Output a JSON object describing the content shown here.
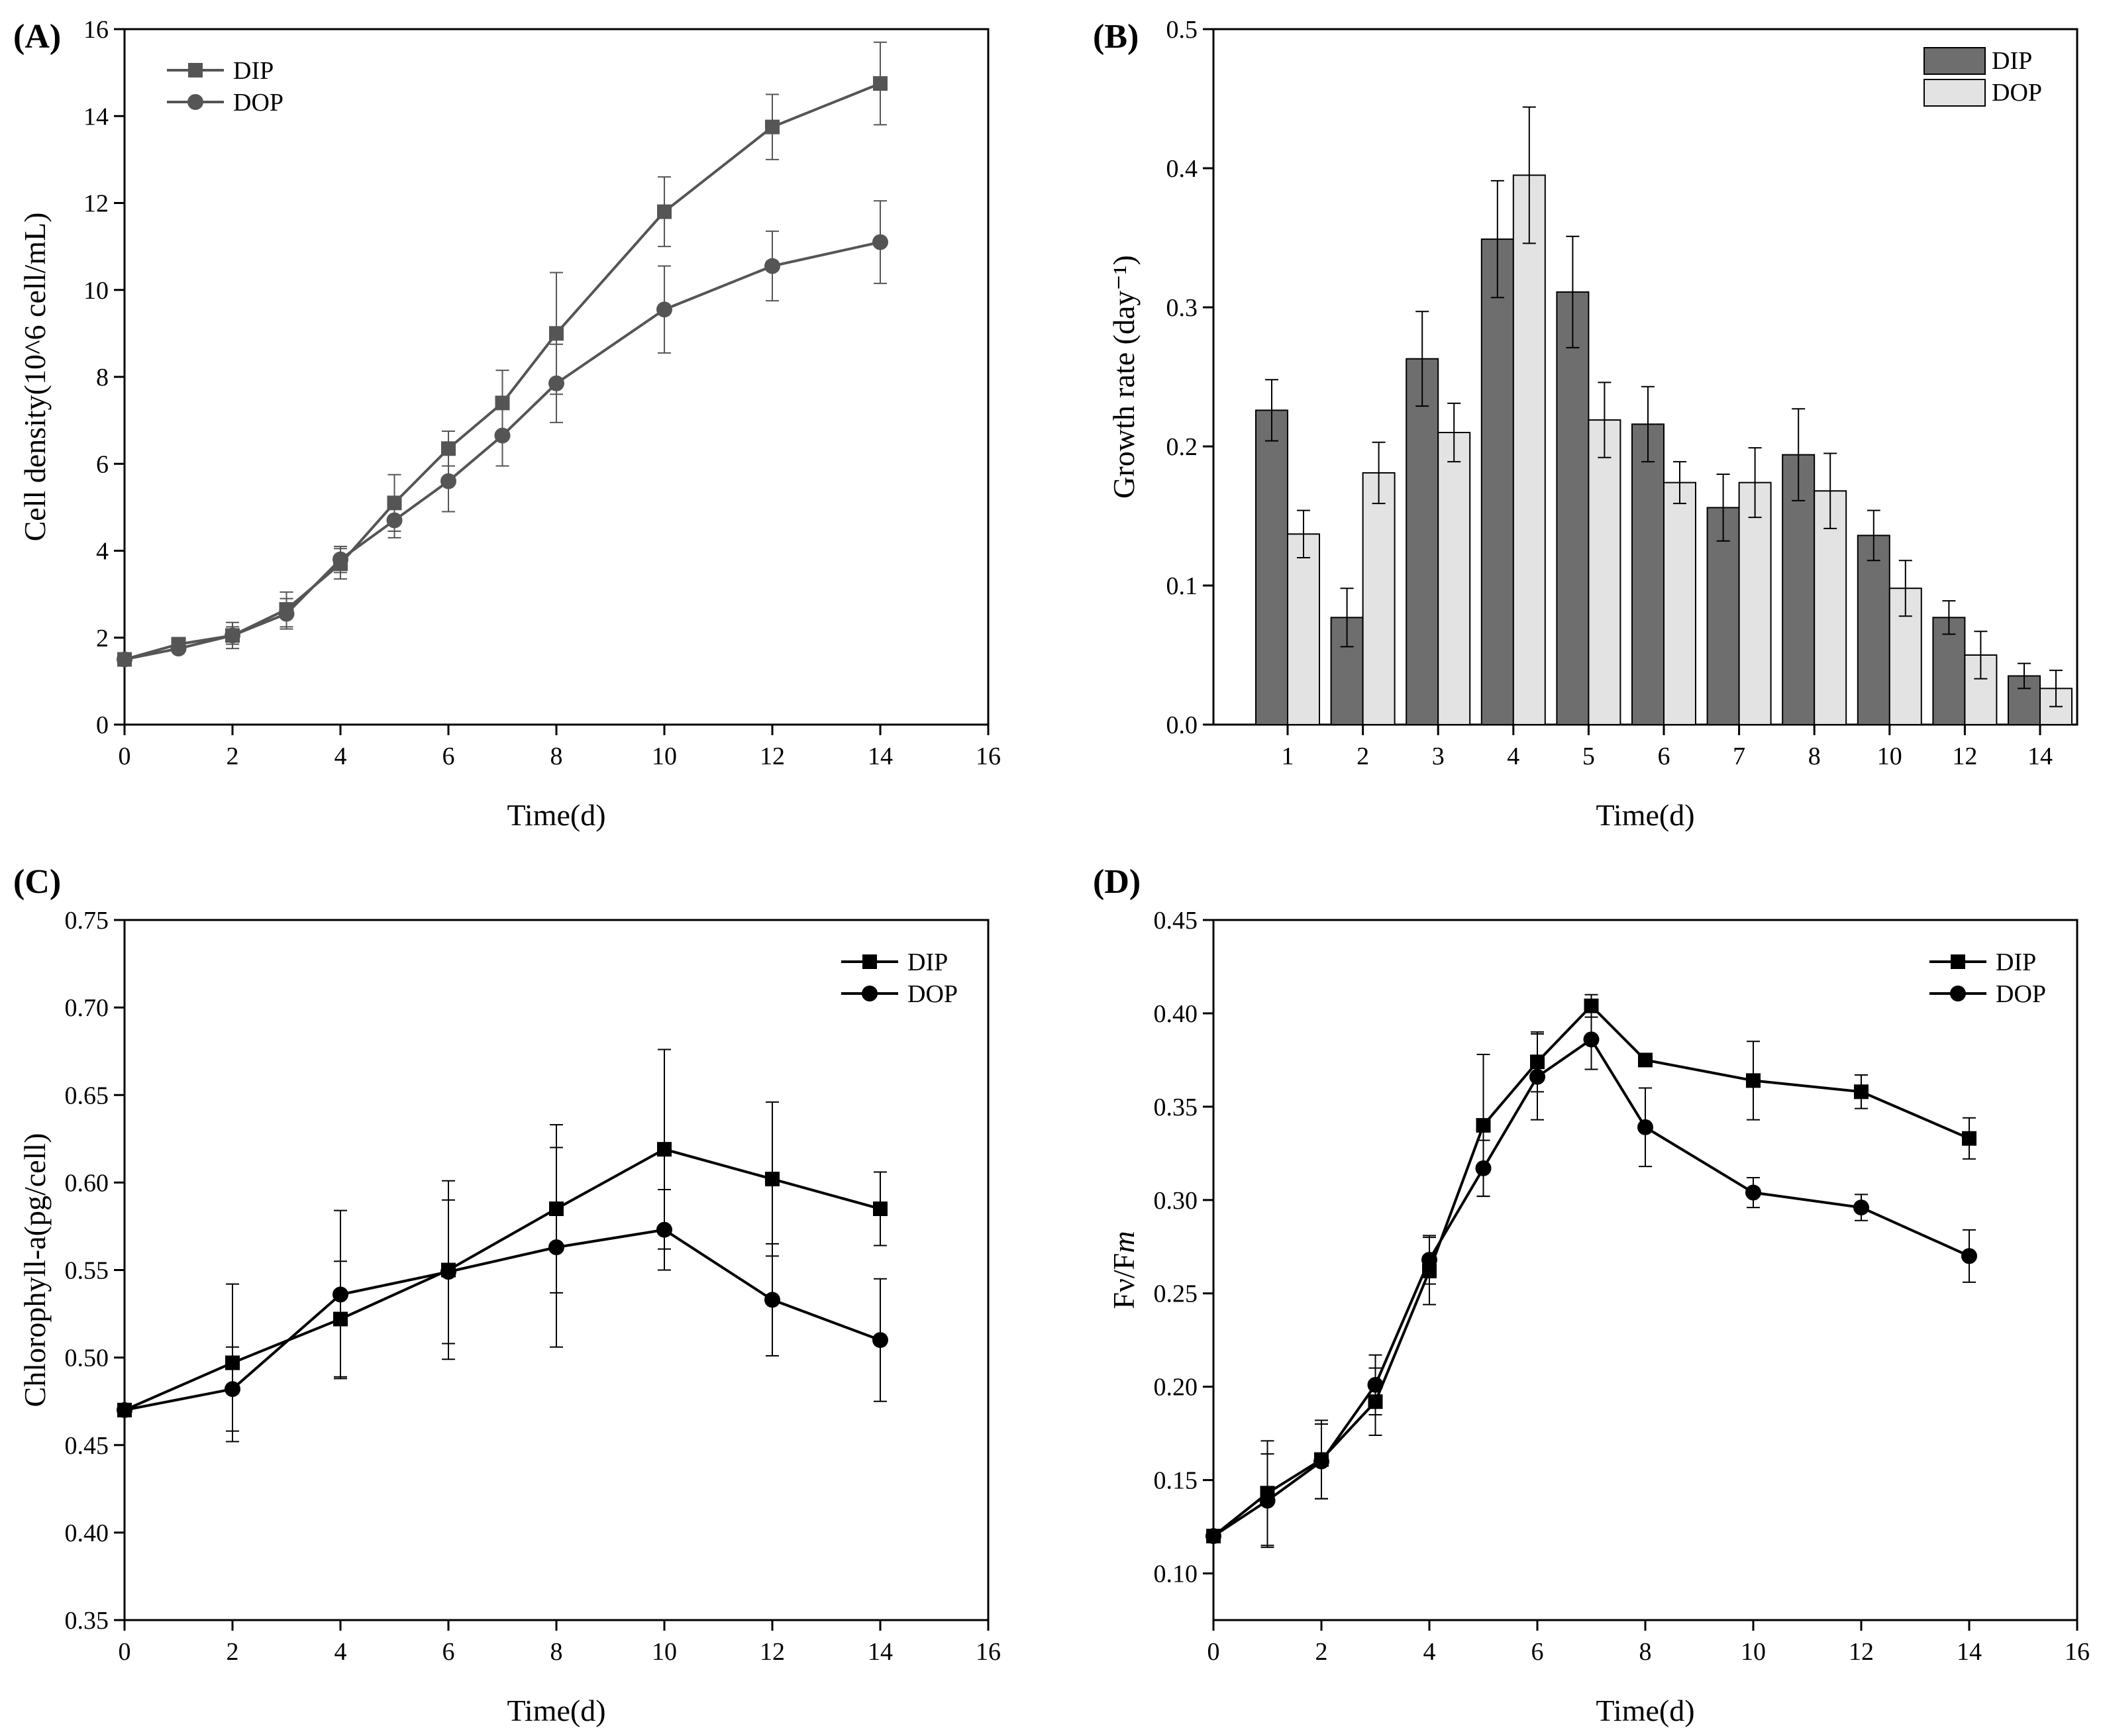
{
  "chart_data": [
    {
      "id": "A",
      "type": "line",
      "label": "(A)",
      "xlabel": "Time(d)",
      "ylabel": "Cell density(10^6 cell/mL)",
      "xlim": [
        0,
        16
      ],
      "ylim": [
        0,
        16
      ],
      "xticks": [
        0,
        2,
        4,
        6,
        8,
        10,
        12,
        14,
        16
      ],
      "yticks": [
        0,
        2,
        4,
        6,
        8,
        10,
        12,
        14,
        16
      ],
      "ytick_decimals": 0,
      "legend": "top-left",
      "color": "#555555",
      "series": [
        {
          "name": "DIP",
          "marker": "square",
          "x": [
            0,
            1,
            2,
            3,
            4,
            5,
            6,
            7,
            8,
            10,
            12,
            14
          ],
          "y": [
            1.5,
            1.85,
            2.05,
            2.65,
            3.7,
            5.1,
            6.35,
            7.4,
            9.0,
            11.8,
            13.75,
            14.75
          ],
          "err": [
            0.05,
            0.12,
            0.3,
            0.4,
            0.35,
            0.65,
            0.4,
            0.75,
            1.4,
            0.8,
            0.75,
            0.95
          ]
        },
        {
          "name": "DOP",
          "marker": "circle",
          "x": [
            0,
            1,
            2,
            3,
            4,
            5,
            6,
            7,
            8,
            10,
            12,
            14
          ],
          "y": [
            1.5,
            1.75,
            2.05,
            2.55,
            3.8,
            4.7,
            5.6,
            6.65,
            7.85,
            9.55,
            10.55,
            11.1
          ],
          "err": [
            0.05,
            0.08,
            0.2,
            0.35,
            0.3,
            0.4,
            0.7,
            0.7,
            0.9,
            1.0,
            0.8,
            0.95
          ]
        }
      ]
    },
    {
      "id": "B",
      "type": "bar",
      "label": "(B)",
      "xlabel": "Time(d)",
      "ylabel": "Growth rate (day⁻¹)",
      "ylim": [
        0,
        0.5
      ],
      "yticks": [
        0,
        0.1,
        0.2,
        0.3,
        0.4,
        0.5
      ],
      "ytick_decimals": 1,
      "legend": "top-right",
      "categories": [
        "1",
        "2",
        "3",
        "4",
        "5",
        "6",
        "7",
        "8",
        "10",
        "12",
        "14"
      ],
      "series": [
        {
          "name": "DIP",
          "color": "#6e6e6e",
          "values": [
            0.226,
            0.077,
            0.263,
            0.349,
            0.311,
            0.216,
            0.156,
            0.194,
            0.136,
            0.077,
            0.035
          ],
          "err": [
            0.022,
            0.021,
            0.034,
            0.042,
            0.04,
            0.027,
            0.024,
            0.033,
            0.018,
            0.012,
            0.009
          ]
        },
        {
          "name": "DOP",
          "color": "#e3e3e3",
          "values": [
            0.137,
            0.181,
            0.21,
            0.395,
            0.219,
            0.174,
            0.174,
            0.168,
            0.098,
            0.05,
            0.026
          ],
          "err": [
            0.017,
            0.022,
            0.021,
            0.049,
            0.027,
            0.015,
            0.025,
            0.027,
            0.02,
            0.017,
            0.013
          ]
        }
      ]
    },
    {
      "id": "C",
      "type": "line",
      "label": "(C)",
      "xlabel": "Time(d)",
      "ylabel": "Chlorophyll-a(pg/cell)",
      "xlim": [
        0,
        16
      ],
      "ylim": [
        0.35,
        0.75
      ],
      "xticks": [
        0,
        2,
        4,
        6,
        8,
        10,
        12,
        14,
        16
      ],
      "yticks": [
        0.35,
        0.4,
        0.45,
        0.5,
        0.55,
        0.6,
        0.65,
        0.7,
        0.75
      ],
      "ytick_decimals": 2,
      "legend": "top-right",
      "color": "#000000",
      "series": [
        {
          "name": "DIP",
          "marker": "square",
          "x": [
            0,
            2,
            4,
            6,
            8,
            10,
            12,
            14
          ],
          "y": [
            0.47,
            0.497,
            0.522,
            0.55,
            0.585,
            0.619,
            0.602,
            0.585
          ],
          "err": [
            0.002,
            0.045,
            0.033,
            0.051,
            0.048,
            0.057,
            0.044,
            0.021
          ]
        },
        {
          "name": "DOP",
          "marker": "circle",
          "x": [
            0,
            2,
            4,
            6,
            8,
            10,
            12,
            14
          ],
          "y": [
            0.47,
            0.482,
            0.536,
            0.549,
            0.563,
            0.573,
            0.533,
            0.51
          ],
          "err": [
            0.002,
            0.024,
            0.048,
            0.041,
            0.057,
            0.023,
            0.032,
            0.035
          ]
        }
      ]
    },
    {
      "id": "D",
      "type": "line",
      "label": "(D)",
      "xlabel": "Time(d)",
      "ylabel": "Fν/F",
      "ylabel_italic": "m",
      "xlim": [
        0,
        16
      ],
      "ylim": [
        0.075,
        0.45
      ],
      "xticks": [
        0,
        2,
        4,
        6,
        8,
        10,
        12,
        14,
        16
      ],
      "yticks": [
        0.1,
        0.15,
        0.2,
        0.25,
        0.3,
        0.35,
        0.4,
        0.45
      ],
      "ytick_decimals": 2,
      "legend": "top-right",
      "color": "#000000",
      "series": [
        {
          "name": "DIP",
          "marker": "square",
          "x": [
            0,
            1,
            2,
            3,
            4,
            5,
            6,
            7,
            8,
            10,
            12,
            14
          ],
          "y": [
            0.12,
            0.143,
            0.161,
            0.192,
            0.262,
            0.34,
            0.374,
            0.404,
            0.375,
            0.364,
            0.358,
            0.333
          ],
          "err": [
            0.003,
            0.028,
            0.021,
            0.018,
            0.018,
            0.038,
            0.016,
            0.006,
            0.003,
            0.021,
            0.009,
            0.011
          ]
        },
        {
          "name": "DOP",
          "marker": "circle",
          "x": [
            0,
            1,
            2,
            3,
            4,
            5,
            6,
            7,
            8,
            10,
            12,
            14
          ],
          "y": [
            0.12,
            0.139,
            0.16,
            0.201,
            0.268,
            0.317,
            0.366,
            0.386,
            0.339,
            0.304,
            0.296,
            0.27
          ],
          "err": [
            0.003,
            0.025,
            0.02,
            0.016,
            0.013,
            0.015,
            0.023,
            0.016,
            0.021,
            0.008,
            0.007,
            0.014
          ]
        }
      ]
    }
  ]
}
